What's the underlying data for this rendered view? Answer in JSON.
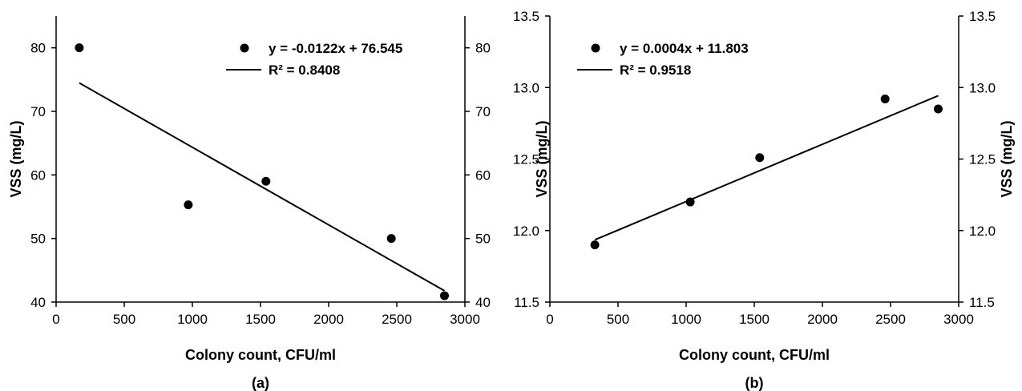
{
  "chart_data": [
    {
      "type": "scatter",
      "panel_label": "(a)",
      "xlabel": "Colony count, CFU/ml",
      "ylabel": "VSS (mg/L)",
      "xlim": [
        0,
        3000
      ],
      "ylim": [
        40,
        85
      ],
      "x_ticks": [
        "0",
        "500",
        "1000",
        "1500",
        "2000",
        "2500",
        "3000"
      ],
      "y_ticks": [
        "40",
        "50",
        "60",
        "70",
        "80"
      ],
      "y_tick_values": [
        40,
        50,
        60,
        70,
        80
      ],
      "right_y_ticks": [
        "40",
        "50",
        "60",
        "70",
        "80"
      ],
      "points": [
        {
          "x": 170,
          "y": 80
        },
        {
          "x": 970,
          "y": 55.3
        },
        {
          "x": 1540,
          "y": 59
        },
        {
          "x": 2460,
          "y": 50
        },
        {
          "x": 2850,
          "y": 41
        }
      ],
      "trendline": {
        "x": [
          170,
          2850
        ],
        "slope": -0.0122,
        "intercept": 76.545
      },
      "legend": {
        "equation": "y = -0.0122x + 76.545",
        "r2": "R² = 0.8408"
      },
      "grid": false
    },
    {
      "type": "scatter",
      "panel_label": "(b)",
      "xlabel": "Colony count, CFU/ml",
      "ylabel": "VSS (mg/L)",
      "xlim": [
        0,
        3000
      ],
      "ylim": [
        11.5,
        13.5
      ],
      "x_ticks": [
        "0",
        "500",
        "1000",
        "1500",
        "2000",
        "2500",
        "3000"
      ],
      "y_ticks": [
        "11.5",
        "12.0",
        "12.5",
        "13.0",
        "13.5"
      ],
      "y_tick_values": [
        11.5,
        12.0,
        12.5,
        13.0,
        13.5
      ],
      "right_y_ticks": [
        "11.5",
        "12.0",
        "12.5",
        "13.0",
        "13.5"
      ],
      "points": [
        {
          "x": 330,
          "y": 11.9
        },
        {
          "x": 1030,
          "y": 12.2
        },
        {
          "x": 1540,
          "y": 12.51
        },
        {
          "x": 2460,
          "y": 12.92
        },
        {
          "x": 2850,
          "y": 12.85
        }
      ],
      "trendline": {
        "x": [
          330,
          2850
        ],
        "slope": 0.0004,
        "intercept": 11.803
      },
      "legend": {
        "equation": "y = 0.0004x + 11.803",
        "r2": "R² = 0.9518"
      },
      "grid": false
    }
  ]
}
